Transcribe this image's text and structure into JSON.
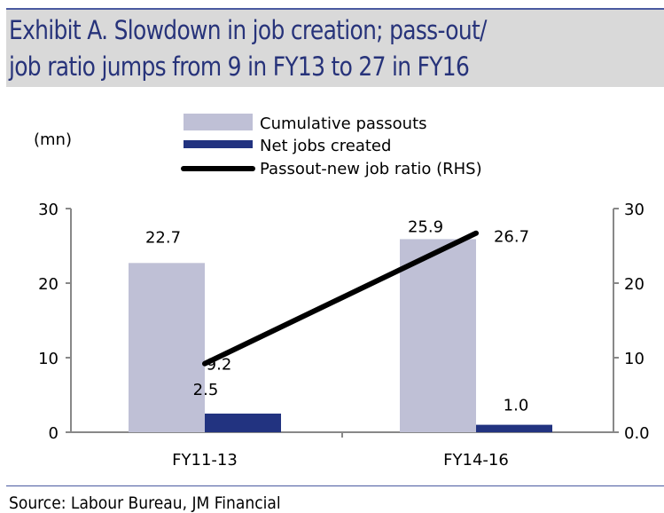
{
  "title_line1": "Exhibit A. Slowdown in job creation; pass-out/",
  "title_line2": "job ratio jumps from 9 in FY13 to 27 in FY16",
  "source": "Source: Labour Bureau, JM Financial",
  "chart_data": {
    "type": "bar",
    "categories": [
      "FY11-13",
      "FY14-16"
    ],
    "unit_label": "(mn)",
    "ylim": [
      0,
      30
    ],
    "yticks": [
      "0",
      "10",
      "20",
      "30"
    ],
    "y2lim": [
      0,
      30
    ],
    "y2ticks": [
      "0.0",
      "10",
      "20",
      "30"
    ],
    "series": [
      {
        "name": "Cumulative passouts",
        "type": "bar",
        "axis": "left",
        "color": "#bfc0d6",
        "values": [
          22.7,
          25.9
        ],
        "labels": [
          "22.7",
          "25.9"
        ]
      },
      {
        "name": "Net jobs created",
        "type": "bar",
        "axis": "left",
        "color": "#223380",
        "values": [
          2.5,
          1.0
        ],
        "labels": [
          "2.5",
          "1.0"
        ]
      },
      {
        "name": "Passout-new job ratio (RHS)",
        "type": "line",
        "axis": "right",
        "color": "#000000",
        "values": [
          9.2,
          26.7
        ],
        "labels": [
          "9.2",
          "26.7"
        ]
      }
    ]
  }
}
